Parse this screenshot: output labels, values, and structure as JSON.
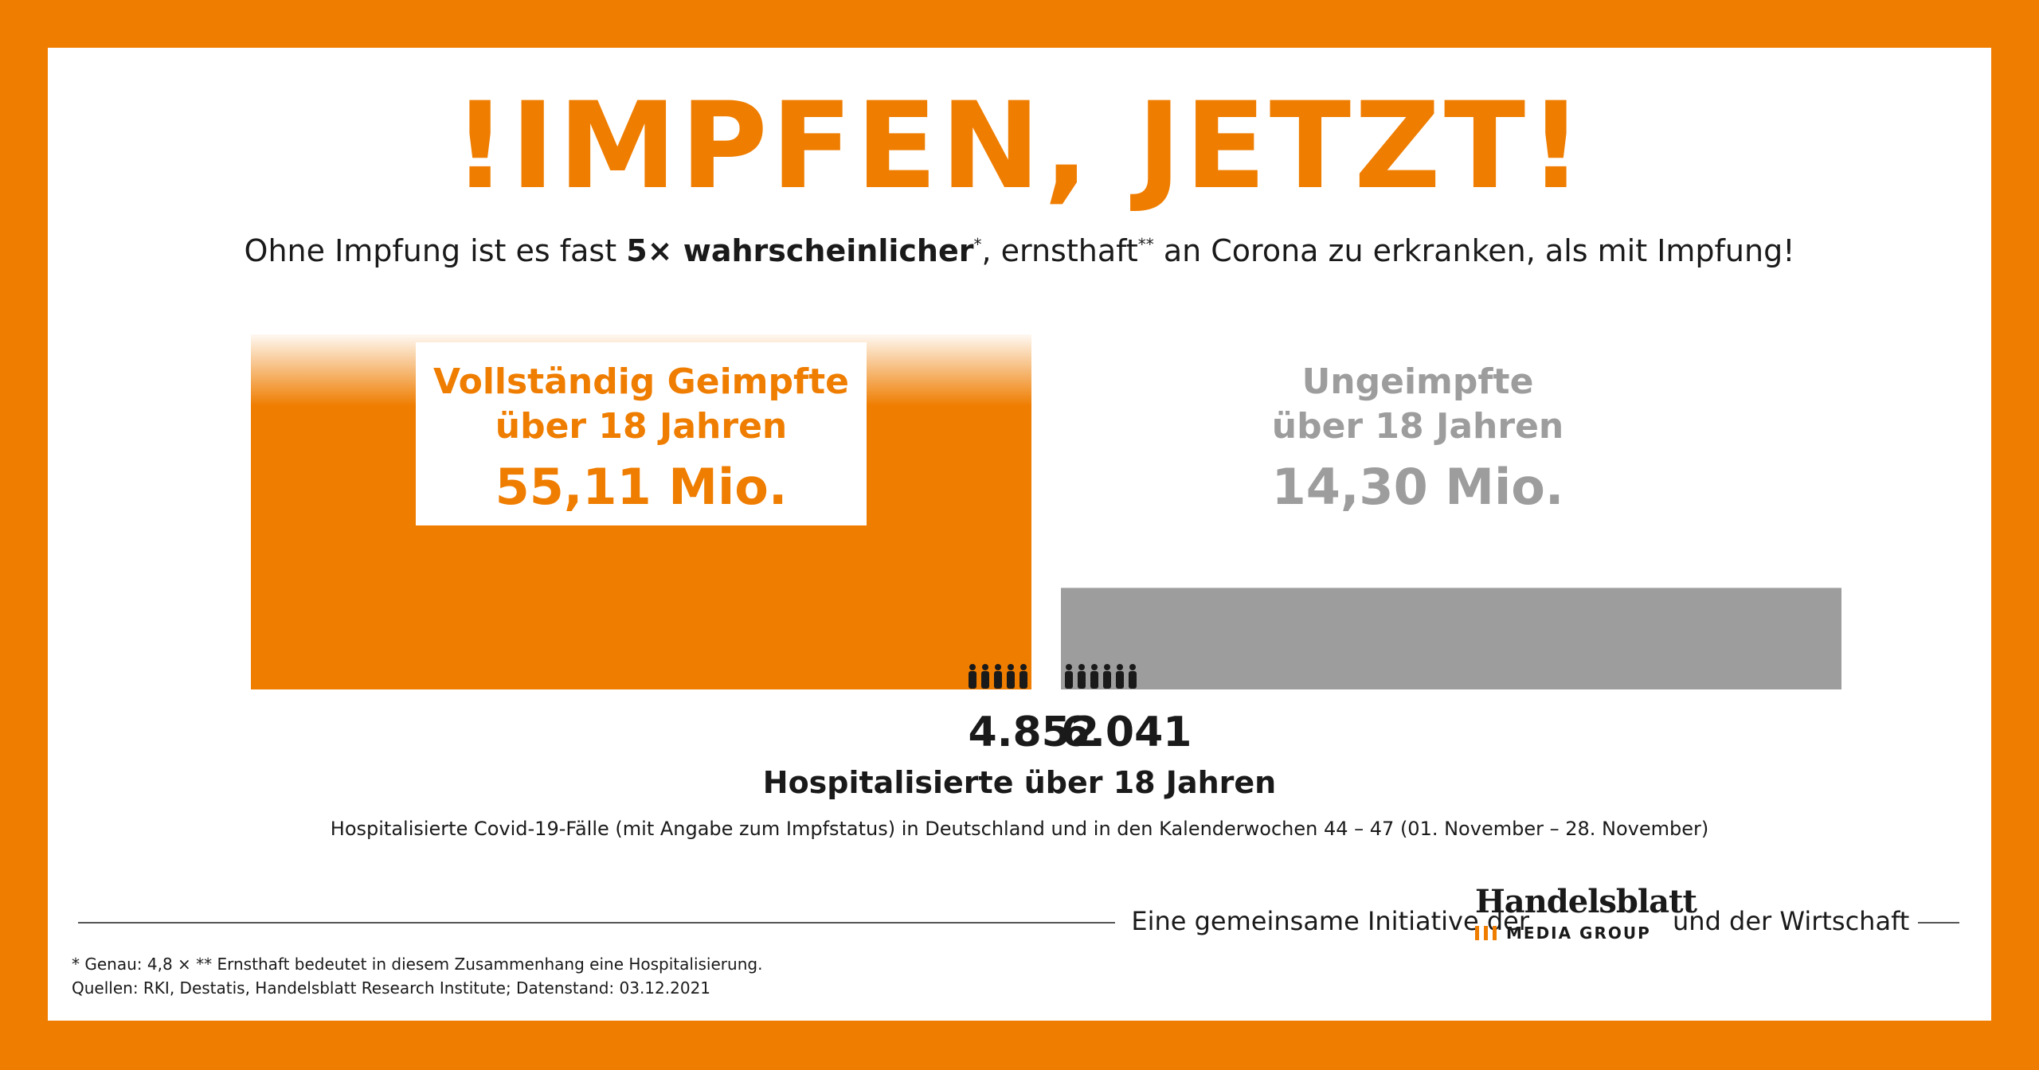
{
  "colors": {
    "accent": "#EF7D00",
    "unvaccinated_gray": "#9d9d9d",
    "hospitalized_black": "#1a1a1a"
  },
  "headline": {
    "text": "IMPFEN, JETZT",
    "left_mark": "!",
    "right_mark": "!"
  },
  "subline": {
    "part1": "Ohne Impfung ist es fast ",
    "emphasis": "5× wahrscheinlicher",
    "star1": "*",
    "part2": ", ernsthaft",
    "star2": "**",
    "part3": " an Corona zu erkranken, als mit Impfung!"
  },
  "groups": {
    "vaccinated": {
      "label_line1": "Vollständig Geimpfte",
      "label_line2": "über 18 Jahren",
      "value": "55,11 Mio.",
      "population_mio": 55.11,
      "hospitalized": 4852,
      "color": "#EF7D00"
    },
    "unvaccinated": {
      "label_line1": "Ungeimpfte",
      "label_line2": "über 18 Jahren",
      "value": "14,30 Mio.",
      "population_mio": 14.3,
      "hospitalized": 6041,
      "color": "#9d9d9d"
    }
  },
  "hospitalized": {
    "vaccinated_text": "4.852",
    "unvaccinated_text": "6.041",
    "label": "Hospitalisierte über 18 Jahren"
  },
  "note": "Hospitalisierte Covid-19-Fälle (mit Angabe zum Impfstatus) in Deutschland und in den Kalenderwochen 44 – 47 (01. November – 28. November)",
  "initiative": {
    "text": "Eine gemeinsame Initiative der",
    "logo_word": "Handelsblatt",
    "logo_sub": "MEDIA GROUP",
    "closing": "und der Wirtschaft"
  },
  "footnotes": {
    "line1": "* Genau: 4,8 ×   ** Ernsthaft bedeutet in diesem Zusammenhang eine Hospitalisierung.",
    "line2": "Quellen: RKI, Destatis, Handelsblatt Research Institute; Datenstand: 03.12.2021"
  }
}
